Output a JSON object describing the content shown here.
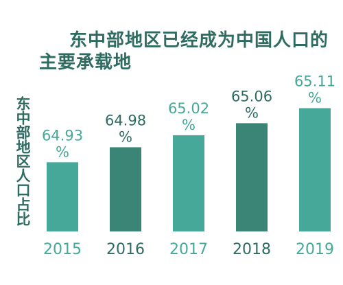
{
  "chart_data": {
    "type": "bar",
    "title_lines": [
      "东中部地区已经成为中国人口的",
      "主要承载地"
    ],
    "ylabel": "东中部地区人口占比",
    "categories": [
      "2015",
      "2016",
      "2017",
      "2018",
      "2019"
    ],
    "values": [
      64.93,
      64.98,
      65.02,
      65.06,
      65.11
    ],
    "value_labels": [
      "64.93",
      "64.98",
      "65.02",
      "65.06",
      "65.11"
    ],
    "unit": "%",
    "ylim": [
      64.7,
      65.15
    ],
    "grid": false,
    "legend": "none",
    "colors": {
      "bar": "#45a898",
      "bar_highlight": "#3a8575",
      "label": "#45a898",
      "label_highlight": "#2e6b61",
      "title": "#2e6b61",
      "background": "#ffffff"
    },
    "highlighted_categories": [
      "2016",
      "2018"
    ]
  }
}
